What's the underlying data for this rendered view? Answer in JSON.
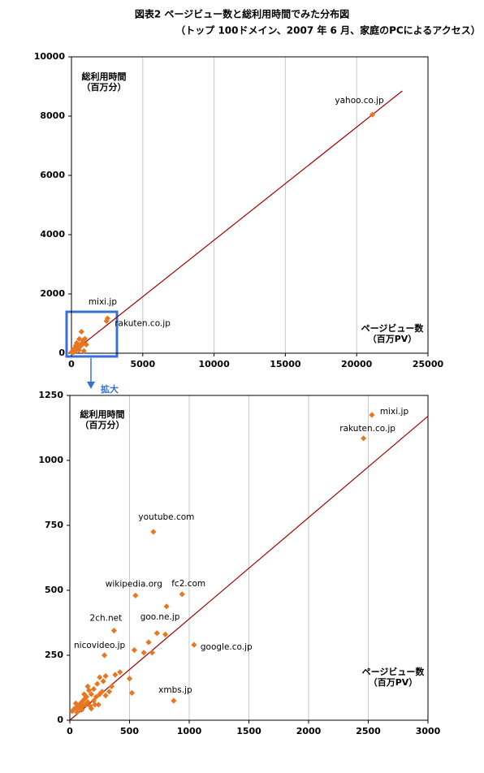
{
  "title": "図表2  ページビュー数と総利用時間でみた分布図",
  "subtitle": "（トップ 100ドメイン、2007 年 6 月、家庭のPCによるアクセス）",
  "zoom_label": "拡大",
  "chart_data": [
    {
      "type": "scatter",
      "x_label": [
        "ページビュー数",
        "（百万PV）"
      ],
      "y_label": [
        "総利用時間",
        "（百万分）"
      ],
      "xlim": [
        0,
        25000
      ],
      "xticks": [
        0,
        5000,
        10000,
        15000,
        20000,
        25000
      ],
      "ylim": [
        0,
        10000
      ],
      "yticks": [
        0,
        2000,
        4000,
        6000,
        8000,
        10000
      ],
      "grid": true,
      "color": "#e87722",
      "x": [
        21100,
        2530,
        2460,
        700,
        940,
        550,
        810,
        730,
        800,
        370,
        1040,
        290,
        870,
        540,
        620,
        660,
        690,
        500,
        520,
        420,
        380,
        300,
        350,
        330,
        280,
        250,
        230,
        200,
        180,
        160,
        140,
        120,
        100,
        80,
        60,
        40,
        30,
        20,
        50,
        70,
        90,
        110,
        130,
        150,
        170,
        200,
        220,
        250,
        270,
        300,
        150,
        120,
        210,
        240,
        100,
        60,
        180
      ],
      "values": [
        8050,
        1175,
        1085,
        725,
        485,
        480,
        438,
        335,
        330,
        345,
        290,
        250,
        75,
        270,
        260,
        300,
        260,
        160,
        105,
        185,
        175,
        170,
        130,
        110,
        150,
        165,
        140,
        120,
        100,
        115,
        90,
        80,
        70,
        60,
        50,
        45,
        40,
        35,
        65,
        45,
        50,
        55,
        60,
        70,
        55,
        75,
        90,
        100,
        110,
        95,
        130,
        100,
        60,
        60,
        40,
        30,
        45
      ],
      "point_labels": [
        "yahoo.co.jp",
        "mixi.jp",
        "rakuten.co.jp",
        null,
        null,
        null,
        null,
        null,
        null,
        null,
        null,
        null,
        null,
        null,
        null,
        null,
        null,
        null,
        null,
        null,
        null,
        null,
        null,
        null,
        null,
        null,
        null,
        null,
        null,
        null,
        null,
        null,
        null,
        null,
        null,
        null,
        null,
        null,
        null,
        null,
        null,
        null,
        null,
        null,
        null,
        null,
        null,
        null,
        null,
        null,
        null,
        null,
        null,
        null,
        null,
        null,
        null
      ],
      "trendline": {
        "x": [
          0,
          23200
        ],
        "values": [
          0,
          8850
        ],
        "color": "#a00000"
      }
    },
    {
      "type": "scatter",
      "x_label": [
        "ページビュー数",
        "（百万PV）"
      ],
      "y_label": [
        "総利用時間",
        "（百万分）"
      ],
      "xlim": [
        0,
        3000
      ],
      "xticks": [
        0,
        500,
        1000,
        1500,
        2000,
        2500,
        3000
      ],
      "ylim": [
        0,
        1250
      ],
      "yticks": [
        0,
        250,
        500,
        750,
        1000,
        1250
      ],
      "grid": true,
      "color": "#e87722",
      "x": [
        2530,
        2460,
        700,
        940,
        550,
        810,
        730,
        800,
        370,
        1040,
        290,
        870,
        540,
        620,
        660,
        690,
        500,
        520,
        420,
        380,
        300,
        350,
        330,
        280,
        250,
        230,
        200,
        180,
        160,
        140,
        120,
        100,
        80,
        60,
        40,
        30,
        20,
        50,
        70,
        90,
        110,
        130,
        150,
        170,
        200,
        220,
        250,
        270,
        300,
        150,
        120,
        210,
        240,
        100,
        60,
        180
      ],
      "values": [
        1175,
        1085,
        725,
        485,
        480,
        438,
        335,
        330,
        345,
        290,
        250,
        75,
        270,
        260,
        300,
        260,
        160,
        105,
        185,
        175,
        170,
        130,
        110,
        150,
        165,
        140,
        120,
        100,
        115,
        90,
        80,
        70,
        60,
        50,
        45,
        40,
        35,
        65,
        45,
        50,
        55,
        60,
        70,
        55,
        75,
        90,
        100,
        110,
        95,
        130,
        100,
        60,
        60,
        40,
        30,
        45
      ],
      "point_labels": [
        "mixi.jp",
        "rakuten.co.jp",
        "youtube.com",
        "fc2.com",
        "wikipedia.org",
        "goo.ne.jp",
        null,
        null,
        "2ch.net",
        "google.co.jp",
        "nicovideo.jp",
        "xmbs.jp",
        null,
        null,
        null,
        null,
        null,
        null,
        null,
        null,
        null,
        null,
        null,
        null,
        null,
        null,
        null,
        null,
        null,
        null,
        null,
        null,
        null,
        null,
        null,
        null,
        null,
        null,
        null,
        null,
        null,
        null,
        null,
        null,
        null,
        null,
        null,
        null,
        null,
        null,
        null,
        null,
        null,
        null,
        null,
        null
      ],
      "trendline": {
        "x": [
          0,
          3000
        ],
        "values": [
          0,
          1170
        ],
        "color": "#a00000"
      }
    }
  ]
}
